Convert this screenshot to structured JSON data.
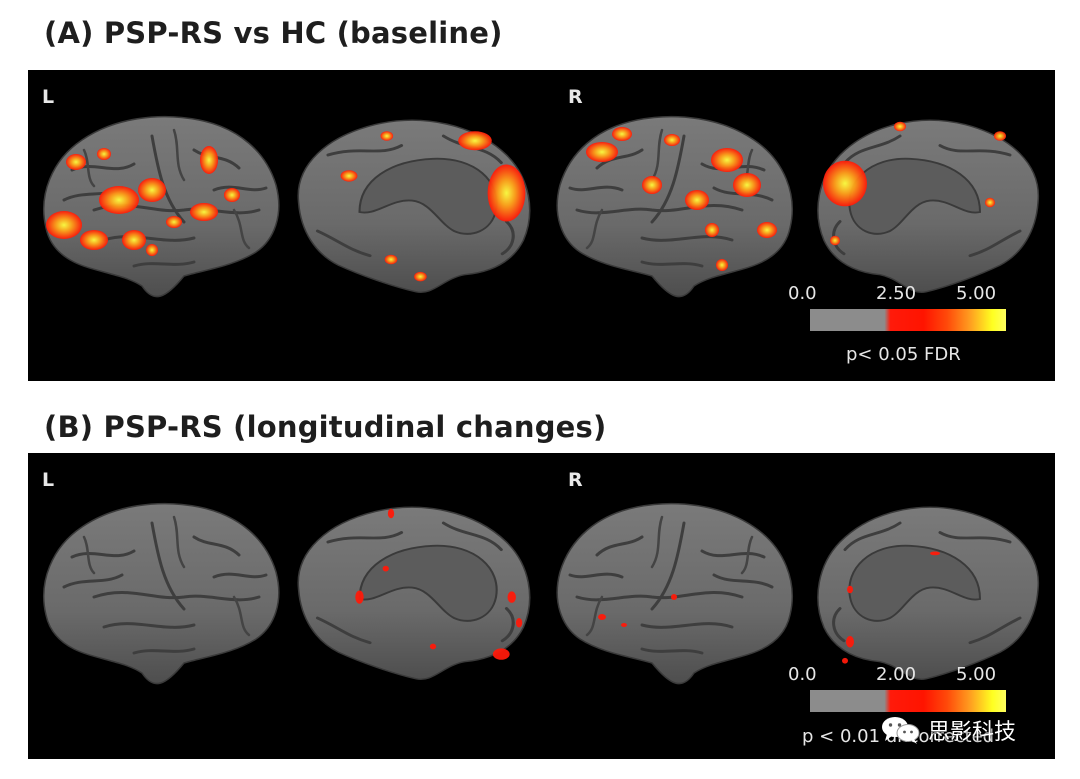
{
  "figure": {
    "panel_a": {
      "title": "(A) PSP-RS vs HC (baseline)",
      "left_label": "L",
      "right_label": "R",
      "colorbar": {
        "ticks": [
          "0.0",
          "2.50",
          "5.00"
        ],
        "caption": "p< 0.05 FDR",
        "colors": [
          "#8c8c8c",
          "#ff1a0a",
          "#ffa020",
          "#ffff20"
        ]
      }
    },
    "panel_b": {
      "title": "(B) PSP-RS (longitudinal changes)",
      "left_label": "L",
      "right_label": "R",
      "colorbar": {
        "ticks": [
          "0.0",
          "2.00",
          "5.00"
        ],
        "caption": "p < 0.01 uncorrected",
        "colors": [
          "#8c8c8c",
          "#ff1a0a",
          "#ffa020",
          "#ffff20"
        ]
      }
    },
    "watermark": {
      "text": "思影科技",
      "icon": "wechat-icon"
    },
    "colors": {
      "background": "#000000",
      "brain_surface": "#6e6e6e",
      "activation_low": "#ff1a0a",
      "activation_high": "#ffff20"
    }
  }
}
